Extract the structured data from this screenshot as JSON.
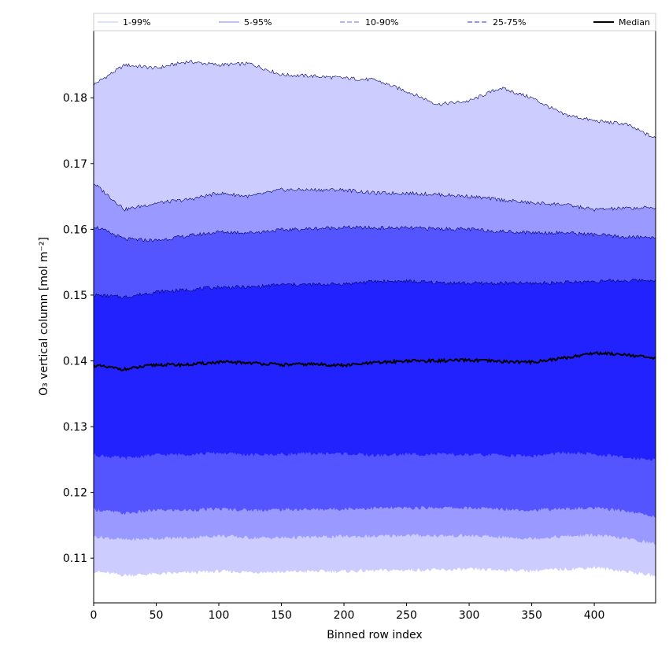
{
  "chart_data": {
    "type": "area",
    "xlabel": "Binned row index",
    "ylabel": "O₃ vertical column [mol m⁻²]",
    "xlim": [
      0,
      449
    ],
    "ylim": [
      0.1032,
      0.1902
    ],
    "x_ticks": [
      "0",
      "50",
      "100",
      "150",
      "200",
      "250",
      "300",
      "350",
      "400"
    ],
    "y_ticks": [
      "0.11",
      "0.12",
      "0.13",
      "0.14",
      "0.15",
      "0.16",
      "0.17",
      "0.18"
    ],
    "legend_position": "top (above plot)",
    "grid": false,
    "x": [
      0,
      25,
      50,
      75,
      100,
      125,
      150,
      175,
      200,
      225,
      250,
      275,
      300,
      325,
      350,
      375,
      400,
      425,
      449
    ],
    "bands": [
      {
        "name": "1-99%",
        "color": "#ccccff",
        "lower": [
          0.108,
          0.1074,
          0.1076,
          0.1078,
          0.108,
          0.1079,
          0.1079,
          0.108,
          0.108,
          0.1081,
          0.1082,
          0.1082,
          0.1083,
          0.1082,
          0.1081,
          0.1083,
          0.1086,
          0.108,
          0.1073
        ],
        "upper": [
          0.182,
          0.185,
          0.1845,
          0.1855,
          0.185,
          0.1852,
          0.1835,
          0.1833,
          0.183,
          0.1827,
          0.181,
          0.179,
          0.1795,
          0.1815,
          0.18,
          0.1775,
          0.1765,
          0.176,
          0.1738
        ]
      },
      {
        "name": "5-95%",
        "color": "#9999ff",
        "lower": [
          0.1133,
          0.1128,
          0.113,
          0.1131,
          0.1134,
          0.1131,
          0.1131,
          0.1132,
          0.1133,
          0.1133,
          0.1135,
          0.1134,
          0.1134,
          0.1132,
          0.113,
          0.1133,
          0.1135,
          0.113,
          0.1122
        ],
        "upper": [
          0.167,
          0.163,
          0.164,
          0.1645,
          0.1655,
          0.165,
          0.166,
          0.166,
          0.166,
          0.1655,
          0.1655,
          0.1653,
          0.165,
          0.1645,
          0.164,
          0.1638,
          0.163,
          0.1632,
          0.1633
        ]
      },
      {
        "name": "10-90%",
        "color": "#5555ff",
        "lower": [
          0.1174,
          0.1168,
          0.1173,
          0.1173,
          0.1175,
          0.1173,
          0.1174,
          0.1174,
          0.1175,
          0.1176,
          0.1176,
          0.1177,
          0.1176,
          0.1175,
          0.1173,
          0.1175,
          0.1176,
          0.1172,
          0.1163
        ],
        "upper": [
          0.1605,
          0.1585,
          0.1583,
          0.159,
          0.1596,
          0.1595,
          0.1599,
          0.1601,
          0.1603,
          0.1602,
          0.1602,
          0.1601,
          0.16,
          0.1597,
          0.1595,
          0.1595,
          0.1592,
          0.1588,
          0.1588
        ]
      },
      {
        "name": "25-75%",
        "color": "#2222ff",
        "lower": [
          0.1257,
          0.1252,
          0.1257,
          0.1258,
          0.126,
          0.1257,
          0.1258,
          0.1259,
          0.1259,
          0.1256,
          0.1258,
          0.1258,
          0.1257,
          0.1257,
          0.1255,
          0.126,
          0.1258,
          0.1253,
          0.125
        ],
        "upper": [
          0.15,
          0.1497,
          0.1505,
          0.1508,
          0.1512,
          0.1512,
          0.1516,
          0.1516,
          0.1517,
          0.1521,
          0.1521,
          0.1519,
          0.1518,
          0.1518,
          0.1518,
          0.1519,
          0.1521,
          0.1522,
          0.1523
        ]
      }
    ],
    "median": {
      "name": "Median",
      "color": "#000000",
      "values": [
        0.1393,
        0.1387,
        0.1394,
        0.1394,
        0.1398,
        0.1397,
        0.1394,
        0.1395,
        0.1393,
        0.1397,
        0.14,
        0.14,
        0.1401,
        0.1399,
        0.1398,
        0.1404,
        0.1412,
        0.141,
        0.1403
      ]
    },
    "legend": [
      {
        "label": "1-99%",
        "color": "#ccccff",
        "dash": "none"
      },
      {
        "label": "5-95%",
        "color": "#9999ff",
        "dash": "none"
      },
      {
        "label": "10-90%",
        "color": "#8888ff",
        "dash": "6,3"
      },
      {
        "label": "25-75%",
        "color": "#5555ff",
        "dash": "6,3"
      },
      {
        "label": "Median",
        "color": "#000000",
        "dash": "none"
      }
    ]
  }
}
